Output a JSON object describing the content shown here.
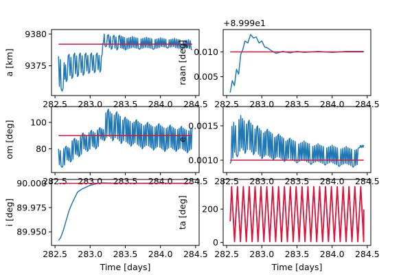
{
  "colors": {
    "measured": "#1f77b4",
    "reference": "#dc143c"
  },
  "chart_data": [
    {
      "type": "line",
      "xlabel": "",
      "ylabel": "a [km]",
      "xlim": [
        282.45,
        284.55
      ],
      "ylim": [
        9370.3,
        9380.7
      ],
      "xticks": [
        282.5,
        283.0,
        283.5,
        284.0,
        284.5
      ],
      "xtick_labels": [
        "282.5",
        "283.0",
        "283.5",
        "284.0",
        "284.5"
      ],
      "yticks": [
        9375,
        9380
      ],
      "ytick_labels": [
        "9375",
        "9380"
      ],
      "offset_text": "",
      "series": [
        {
          "role": "measured",
          "x": [
            282.55,
            282.6,
            282.63,
            282.66,
            282.7,
            282.74,
            282.78,
            282.82,
            282.86,
            282.9,
            282.94,
            282.98,
            283.02,
            283.06,
            283.1,
            283.14,
            283.16,
            283.18,
            283.2,
            283.22,
            283.26,
            283.3,
            283.34,
            283.38,
            283.42,
            283.5,
            283.6,
            283.7,
            283.8,
            283.9,
            284.0,
            284.1,
            284.2,
            284.3,
            284.4,
            284.45
          ],
          "y": [
            9376.5,
            9371.0,
            9375.5,
            9372.5,
            9376.8,
            9373.0,
            9377.0,
            9373.3,
            9377.0,
            9373.5,
            9377.0,
            9373.8,
            9377.0,
            9373.9,
            9377.0,
            9374.0,
            9376.5,
            9378.5,
            9380.0,
            9378.0,
            9379.9,
            9377.6,
            9379.8,
            9377.5,
            9379.8,
            9377.5,
            9379.6,
            9377.6,
            9379.5,
            9377.6,
            9379.4,
            9377.8,
            9379.3,
            9377.6,
            9379.1,
            9377.5
          ],
          "oscillation": "dense"
        },
        {
          "role": "reference",
          "x": [
            282.55,
            284.45
          ],
          "y": [
            9378.4,
            9378.4
          ]
        }
      ]
    },
    {
      "type": "line",
      "xlabel": "",
      "ylabel": "raan [deg]",
      "xlim": [
        282.45,
        284.55
      ],
      "ylim": [
        0.0012,
        0.0145
      ],
      "xticks": [
        282.5,
        283.0,
        283.5,
        284.0,
        284.5
      ],
      "xtick_labels": [
        "282.5",
        "283.0",
        "283.5",
        "284.0",
        "284.5"
      ],
      "yticks": [
        0.005,
        0.01
      ],
      "ytick_labels": [
        "0.005",
        "0.010"
      ],
      "offset_text": "+8.999e1",
      "series": [
        {
          "role": "measured",
          "x": [
            282.55,
            282.58,
            282.61,
            282.64,
            282.67,
            282.7,
            282.73,
            282.76,
            282.8,
            282.84,
            282.88,
            282.92,
            282.96,
            283.0,
            283.04,
            283.08,
            283.12,
            283.2,
            283.3,
            283.4,
            283.5,
            283.6,
            283.8,
            284.0,
            284.2,
            284.45
          ],
          "y": [
            0.0018,
            0.0042,
            0.0032,
            0.0065,
            0.0055,
            0.0095,
            0.0105,
            0.0122,
            0.0118,
            0.0135,
            0.0128,
            0.013,
            0.0118,
            0.0122,
            0.011,
            0.0108,
            0.0104,
            0.0097,
            0.0101,
            0.0098,
            0.0101,
            0.0099,
            0.0101,
            0.0099,
            0.0101,
            0.0101
          ],
          "oscillation": "none"
        },
        {
          "role": "reference",
          "x": [
            282.55,
            284.45
          ],
          "y": [
            0.01,
            0.01
          ]
        }
      ]
    },
    {
      "type": "line",
      "xlabel": "",
      "ylabel": "om [deg]",
      "xlim": [
        282.45,
        284.55
      ],
      "ylim": [
        62,
        112
      ],
      "xticks": [
        282.5,
        283.0,
        283.5,
        284.0,
        284.5
      ],
      "xtick_labels": [
        "282.5",
        "283.0",
        "283.5",
        "284.0",
        "284.5"
      ],
      "yticks": [
        80,
        100
      ],
      "ytick_labels": [
        "80",
        "100"
      ],
      "offset_text": "",
      "series": [
        {
          "role": "measured",
          "x": [
            282.55,
            282.6,
            282.66,
            282.72,
            282.78,
            282.84,
            282.9,
            282.96,
            283.02,
            283.08,
            283.14,
            283.2,
            283.26,
            283.32,
            283.38,
            283.44,
            283.5,
            283.58,
            283.66,
            283.74,
            283.82,
            283.9,
            283.98,
            284.06,
            284.14,
            284.22,
            284.3,
            284.38,
            284.45
          ],
          "y": [
            80,
            66,
            82,
            70,
            88,
            74,
            92,
            78,
            94,
            80,
            96,
            86,
            110,
            86,
            108,
            84,
            104,
            82,
            102,
            80,
            100,
            79,
            99,
            78,
            98,
            78,
            97,
            77,
            96
          ],
          "oscillation": "dense"
        },
        {
          "role": "reference",
          "x": [
            282.55,
            284.45
          ],
          "y": [
            90,
            90
          ]
        }
      ]
    },
    {
      "type": "line",
      "xlabel": "",
      "ylabel": "e",
      "xlim": [
        282.45,
        284.55
      ],
      "ylim": [
        0.00082,
        0.00178
      ],
      "xticks": [
        282.5,
        283.0,
        283.5,
        284.0,
        284.5
      ],
      "xtick_labels": [
        "282.5",
        "283.0",
        "283.5",
        "284.0",
        "284.5"
      ],
      "yticks": [
        0.001,
        0.0015
      ],
      "ytick_labels": [
        "0.0010",
        "0.0015"
      ],
      "offset_text": "",
      "series": [
        {
          "role": "measured",
          "x": [
            282.55,
            282.6,
            282.65,
            282.7,
            282.76,
            282.82,
            282.88,
            282.94,
            283.0,
            283.08,
            283.16,
            283.24,
            283.32,
            283.4,
            283.5,
            283.6,
            283.7,
            283.8,
            283.9,
            284.0,
            284.1,
            284.2,
            284.3,
            284.38,
            284.45
          ],
          "y": [
            0.00095,
            0.00155,
            0.00105,
            0.00165,
            0.0011,
            0.00158,
            0.00108,
            0.0015,
            0.00102,
            0.00145,
            0.001,
            0.00138,
            0.00098,
            0.00132,
            0.00096,
            0.00128,
            0.00094,
            0.00124,
            0.00093,
            0.00122,
            0.00091,
            0.0012,
            0.0009,
            0.00118,
            0.00122
          ],
          "oscillation": "dense"
        },
        {
          "role": "reference",
          "x": [
            282.55,
            284.45
          ],
          "y": [
            0.001,
            0.001
          ]
        }
      ]
    },
    {
      "type": "line",
      "xlabel": "Time [days]",
      "ylabel": "i [deg]",
      "xlim": [
        282.45,
        284.55
      ],
      "ylim": [
        89.936,
        90.004
      ],
      "xticks": [
        282.5,
        283.0,
        283.5,
        284.0,
        284.5
      ],
      "xtick_labels": [
        "282.5",
        "283.0",
        "283.5",
        "284.0",
        "284.5"
      ],
      "yticks": [
        89.95,
        89.975,
        90.0
      ],
      "ytick_labels": [
        "89.950",
        "89.975",
        "90.000"
      ],
      "offset_text": "",
      "series": [
        {
          "role": "measured",
          "x": [
            282.55,
            282.58,
            282.62,
            282.66,
            282.7,
            282.74,
            282.78,
            282.82,
            282.88,
            282.94,
            283.0,
            283.06,
            283.12,
            283.18,
            283.3,
            283.5,
            283.7,
            283.9,
            284.1,
            284.3,
            284.45
          ],
          "y": [
            89.941,
            89.944,
            89.952,
            89.962,
            89.972,
            89.979,
            89.985,
            89.991,
            89.994,
            89.996,
            89.998,
            89.999,
            90.0,
            90.0005,
            90.0002,
            90.0001,
            90.0,
            90.0001,
            90.0,
            90.0,
            90.0
          ],
          "oscillation": "none"
        },
        {
          "role": "reference",
          "x": [
            282.55,
            284.45
          ],
          "y": [
            90.0,
            90.0
          ]
        }
      ]
    },
    {
      "type": "line",
      "xlabel": "Time [days]",
      "ylabel": "ta [deg]",
      "xlim": [
        282.45,
        284.55
      ],
      "ylim": [
        -18,
        378
      ],
      "xticks": [
        282.5,
        283.0,
        283.5,
        284.0,
        284.5
      ],
      "xtick_labels": [
        "282.5",
        "283.0",
        "283.5",
        "284.0",
        "284.5"
      ],
      "yticks": [
        0,
        200
      ],
      "ytick_labels": [
        "0",
        "200"
      ],
      "offset_text": "",
      "sawtooth": {
        "x_start": 282.55,
        "x_end": 284.45,
        "period_days": 0.0835,
        "phase_days": 0.02,
        "ymin": 0,
        "ymax": 360
      },
      "series": [
        {
          "role": "measured",
          "x": [],
          "y": [],
          "oscillation": "sawtooth"
        },
        {
          "role": "reference",
          "x": [],
          "y": [],
          "oscillation": "sawtooth"
        }
      ]
    }
  ]
}
